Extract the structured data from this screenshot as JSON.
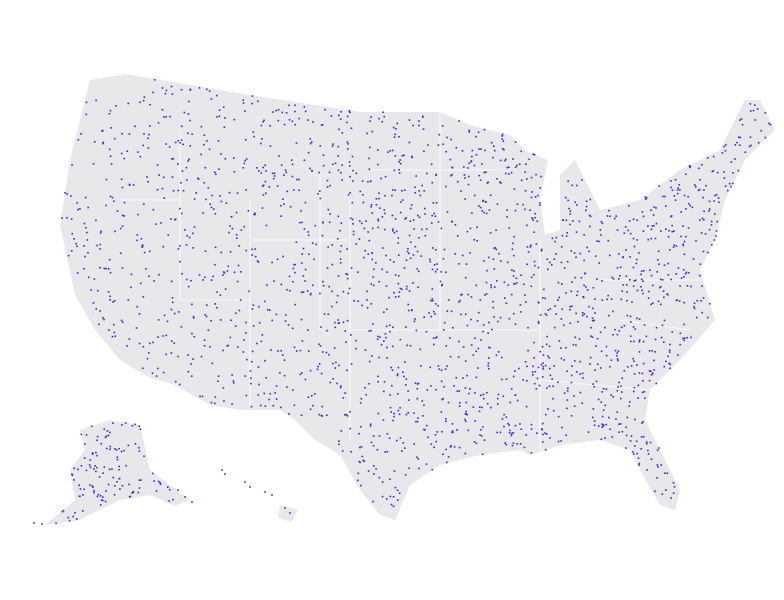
{
  "map": {
    "land_color": "#e8e8ea",
    "border_color": "#ffffff",
    "point_color": "#4a1ee8",
    "regions": [
      "contiguous-us",
      "alaska",
      "hawaii"
    ]
  }
}
